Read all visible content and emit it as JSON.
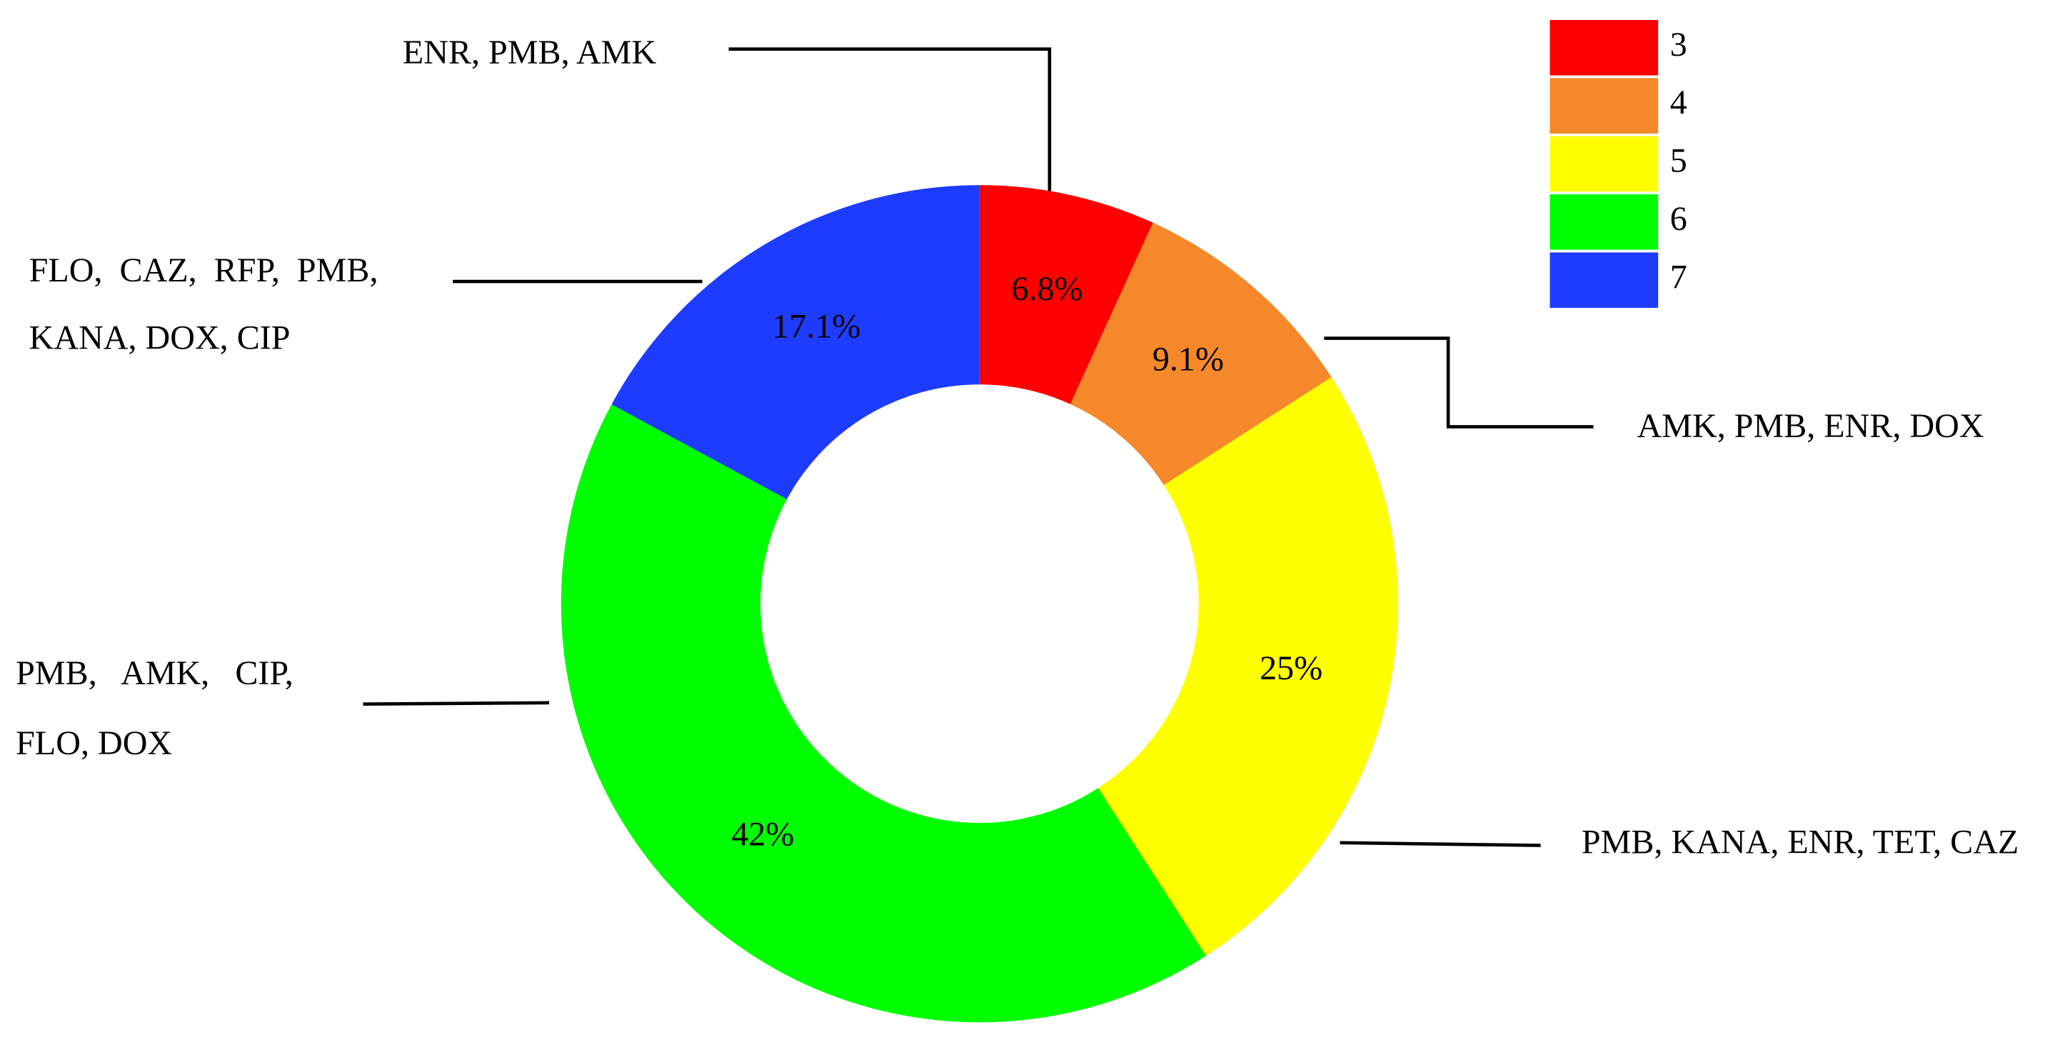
{
  "chart_data": {
    "type": "donut",
    "categories": [
      "3",
      "4",
      "5",
      "6",
      "7"
    ],
    "values": [
      6.8,
      9.1,
      25,
      42,
      17.1
    ],
    "value_labels": [
      "6.8%",
      "9.1%",
      "25%",
      "42%",
      "17.1%"
    ],
    "colors": [
      "#ff0000",
      "#f5882a",
      "#ffff00",
      "#00ff00",
      "#1e3cff"
    ],
    "annotations": [
      [
        "ENR, PMB, AMK"
      ],
      [
        "AMK, PMB, ENR, DOX"
      ],
      [
        "PMB, KANA, ENR, TET, CAZ"
      ],
      [
        "PMB,   AMK,   CIP,",
        "FLO, DOX"
      ],
      [
        "FLO,  CAZ,  RFP,  PMB,",
        "KANA, DOX, CIP"
      ]
    ],
    "legend": "top-right"
  }
}
